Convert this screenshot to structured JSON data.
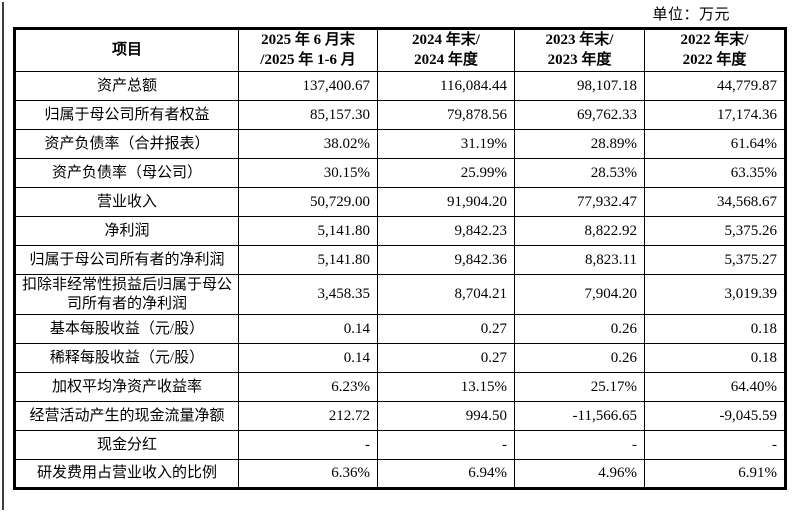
{
  "page": {
    "unit_label": "单位：万元"
  },
  "table": {
    "header": {
      "item_label": "项目",
      "period_columns": [
        {
          "line1": "2025 年 6 月末",
          "line2": "/2025 年 1-6 月"
        },
        {
          "line1": "2024 年末/",
          "line2": "2024 年度"
        },
        {
          "line1": "2023 年末/",
          "line2": "2023 年度"
        },
        {
          "line1": "2022 年末/",
          "line2": "2022 年度"
        }
      ]
    },
    "rows": [
      {
        "label": "资产总额",
        "values": [
          "137,400.67",
          "116,084.44",
          "98,107.18",
          "44,779.87"
        ],
        "tall": false
      },
      {
        "label": "归属于母公司所有者权益",
        "values": [
          "85,157.30",
          "79,878.56",
          "69,762.33",
          "17,174.36"
        ],
        "tall": false
      },
      {
        "label": "资产负债率（合并报表）",
        "values": [
          "38.02%",
          "31.19%",
          "28.89%",
          "61.64%"
        ],
        "tall": false
      },
      {
        "label": "资产负债率（母公司）",
        "values": [
          "30.15%",
          "25.99%",
          "28.53%",
          "63.35%"
        ],
        "tall": false
      },
      {
        "label": "营业收入",
        "values": [
          "50,729.00",
          "91,904.20",
          "77,932.47",
          "34,568.67"
        ],
        "tall": false
      },
      {
        "label": "净利润",
        "values": [
          "5,141.80",
          "9,842.23",
          "8,822.92",
          "5,375.26"
        ],
        "tall": false
      },
      {
        "label": "归属于母公司所有者的净利润",
        "values": [
          "5,141.80",
          "9,842.36",
          "8,823.11",
          "5,375.27"
        ],
        "tall": false
      },
      {
        "label": "扣除非经常性损益后归属于母公司所有者的净利润",
        "values": [
          "3,458.35",
          "8,704.21",
          "7,904.20",
          "3,019.39"
        ],
        "tall": true
      },
      {
        "label": "基本每股收益（元/股）",
        "values": [
          "0.14",
          "0.27",
          "0.26",
          "0.18"
        ],
        "tall": false
      },
      {
        "label": "稀释每股收益（元/股）",
        "values": [
          "0.14",
          "0.27",
          "0.26",
          "0.18"
        ],
        "tall": false
      },
      {
        "label": "加权平均净资产收益率",
        "values": [
          "6.23%",
          "13.15%",
          "25.17%",
          "64.40%"
        ],
        "tall": false
      },
      {
        "label": "经营活动产生的现金流量净额",
        "values": [
          "212.72",
          "994.50",
          "-11,566.65",
          "-9,045.59"
        ],
        "tall": false
      },
      {
        "label": "现金分红",
        "values": [
          "-",
          "-",
          "-",
          "-"
        ],
        "tall": false
      },
      {
        "label": "研发费用占营业收入的比例",
        "values": [
          "6.36%",
          "6.94%",
          "4.96%",
          "6.91%"
        ],
        "tall": false
      }
    ]
  },
  "colors": {
    "text": "#000000",
    "border": "#000000",
    "background": "#ffffff",
    "page_edge_line": "#3d3d3d"
  }
}
